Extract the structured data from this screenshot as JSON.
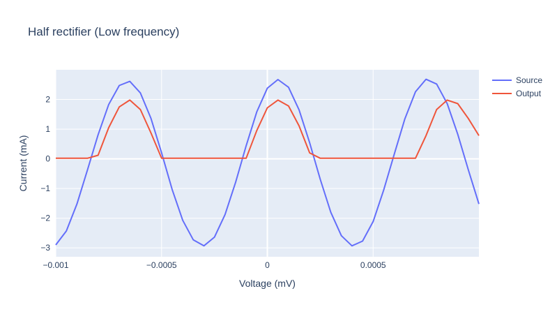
{
  "chart_data": {
    "type": "line",
    "title": "Half rectifier (Low frequency)",
    "xlabel": "Voltage (mV)",
    "ylabel": "Current (mA)",
    "xlim": [
      -0.001,
      0.001
    ],
    "ylim": [
      -3.3,
      3.0
    ],
    "x_ticks": [
      -0.001,
      -0.0005,
      0,
      0.0005
    ],
    "x_tick_labels": [
      "−0.001",
      "−0.0005",
      "0",
      "0.0005"
    ],
    "y_ticks": [
      -3,
      -2,
      -1,
      0,
      1,
      2
    ],
    "y_tick_labels": [
      "−3",
      "−2",
      "−1",
      "0",
      "1",
      "2"
    ],
    "grid": true,
    "legend_position": "top-right",
    "plot_bgcolor": "#e5ecf6",
    "series": [
      {
        "name": "Source",
        "color": "#636efa",
        "x": [
          -0.001,
          -0.00095,
          -0.0009,
          -0.00085,
          -0.0008,
          -0.00075,
          -0.0007,
          -0.00065,
          -0.0006,
          -0.00055,
          -0.0005,
          -0.00045,
          -0.0004,
          -0.00035,
          -0.0003,
          -0.00025,
          -0.0002,
          -0.00015,
          -0.0001,
          -5e-05,
          0,
          5e-05,
          0.0001,
          0.00015,
          0.0002,
          0.00025,
          0.0003,
          0.00035,
          0.0004,
          0.00045,
          0.0005,
          0.00055,
          0.0006,
          0.00065,
          0.0007,
          0.00075,
          0.0008,
          0.00085,
          0.0009,
          0.00095,
          0.001
        ],
        "y": [
          -2.9,
          -2.43,
          -1.52,
          -0.37,
          0.81,
          1.83,
          2.47,
          2.61,
          2.22,
          1.36,
          0.2,
          -1.03,
          -2.07,
          -2.73,
          -2.93,
          -2.64,
          -1.88,
          -0.79,
          0.44,
          1.58,
          2.38,
          2.67,
          2.41,
          1.65,
          0.54,
          -0.69,
          -1.8,
          -2.59,
          -2.93,
          -2.77,
          -2.11,
          -1.05,
          0.16,
          1.35,
          2.26,
          2.68,
          2.52,
          1.86,
          0.83,
          -0.37,
          -1.52
        ]
      },
      {
        "name": "Output",
        "color": "#ef553b",
        "x": [
          -0.001,
          -0.00095,
          -0.0009,
          -0.00085,
          -0.0008,
          -0.00075,
          -0.0007,
          -0.00065,
          -0.0006,
          -0.00055,
          -0.0005,
          -0.00045,
          -0.0004,
          -0.00035,
          -0.0003,
          -0.00025,
          -0.0002,
          -0.00015,
          -0.0001,
          -5e-05,
          0,
          5e-05,
          0.0001,
          0.00015,
          0.0002,
          0.00025,
          0.0003,
          0.00035,
          0.0004,
          0.00045,
          0.0005,
          0.00055,
          0.0006,
          0.00065,
          0.0007,
          0.00075,
          0.0008,
          0.00085,
          0.0009,
          0.00095,
          0.001
        ],
        "y": [
          0.02,
          0.02,
          0.02,
          0.02,
          0.12,
          1.05,
          1.75,
          1.98,
          1.66,
          0.87,
          0.02,
          0.02,
          0.02,
          0.02,
          0.02,
          0.02,
          0.02,
          0.02,
          0.02,
          0.95,
          1.72,
          1.98,
          1.78,
          1.11,
          0.2,
          0.02,
          0.02,
          0.02,
          0.02,
          0.02,
          0.02,
          0.02,
          0.02,
          0.02,
          0.02,
          0.78,
          1.66,
          1.98,
          1.86,
          1.36,
          0.78
        ]
      }
    ]
  }
}
